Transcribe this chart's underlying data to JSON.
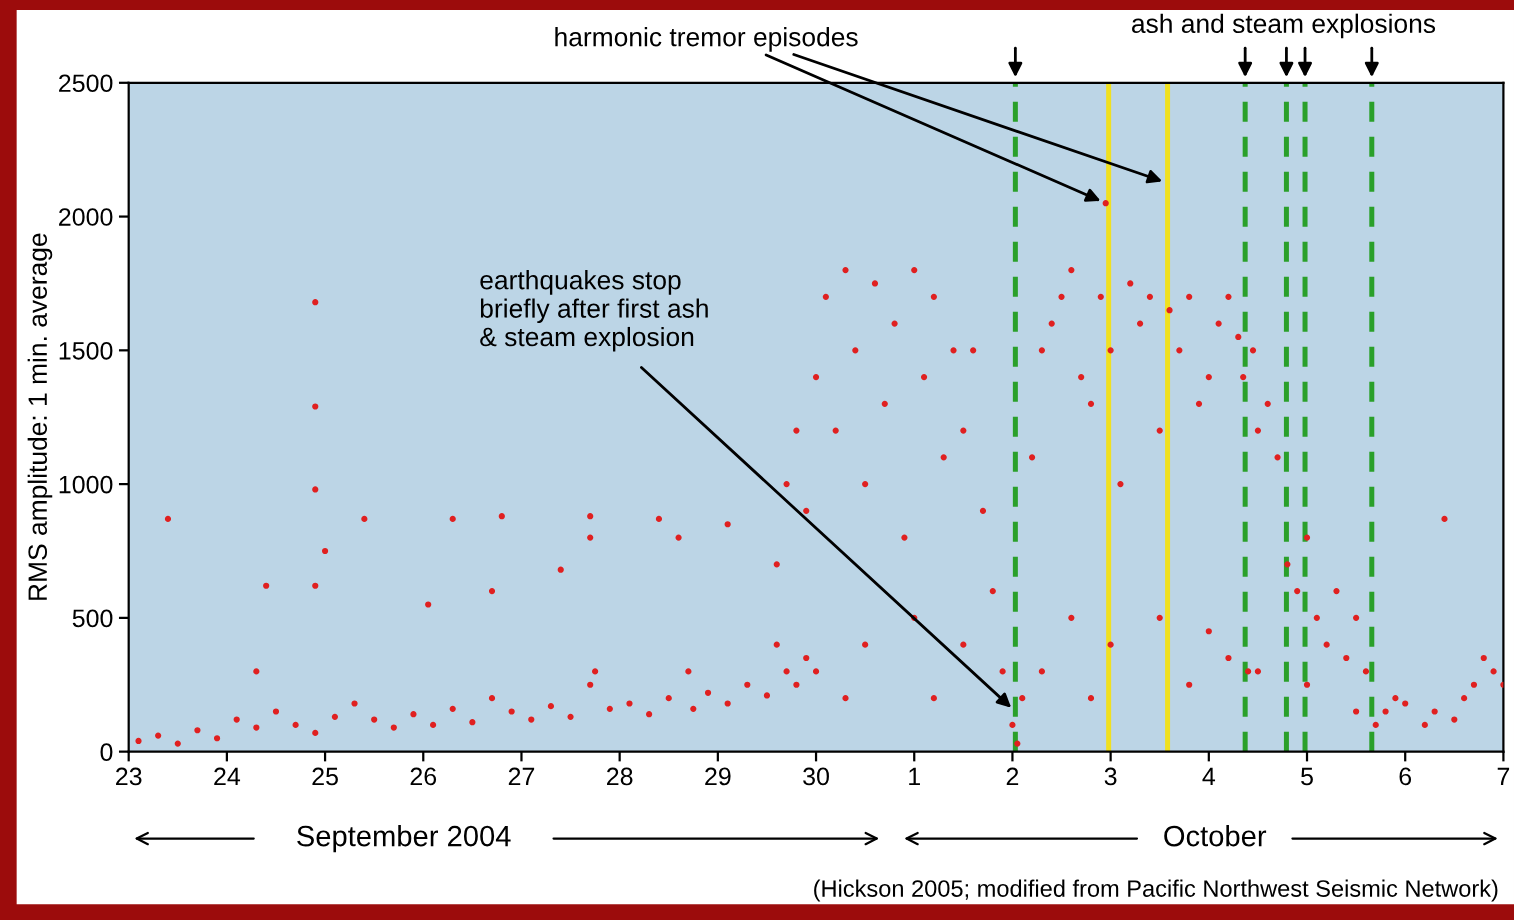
{
  "chart_data": {
    "type": "scatter",
    "ylabel": "RMS amplitude: 1 min. average",
    "xlim": [
      "2004-09-23",
      "2004-10-07"
    ],
    "ylim": [
      0,
      2500
    ],
    "xticks": [
      {
        "value": "2004-09-23",
        "label": "23"
      },
      {
        "value": "2004-09-24",
        "label": "24"
      },
      {
        "value": "2004-09-25",
        "label": "25"
      },
      {
        "value": "2004-09-26",
        "label": "26"
      },
      {
        "value": "2004-09-27",
        "label": "27"
      },
      {
        "value": "2004-09-28",
        "label": "28"
      },
      {
        "value": "2004-09-29",
        "label": "29"
      },
      {
        "value": "2004-09-30",
        "label": "30"
      },
      {
        "value": "2004-10-01",
        "label": "1"
      },
      {
        "value": "2004-10-02",
        "label": "2"
      },
      {
        "value": "2004-10-03",
        "label": "3"
      },
      {
        "value": "2004-10-04",
        "label": "4"
      },
      {
        "value": "2004-10-05",
        "label": "5"
      },
      {
        "value": "2004-10-06",
        "label": "6"
      },
      {
        "value": "2004-10-07",
        "label": "7"
      }
    ],
    "yticks": [
      0,
      500,
      1000,
      1500,
      2000,
      2500
    ],
    "grid": false,
    "marker": "circle",
    "series": [
      {
        "color": "#e02020",
        "x": [
          "2004-09-23T02:24",
          "2004-09-23T07:12",
          "2004-09-23T12:00",
          "2004-09-23T16:48",
          "2004-09-23T21:36",
          "2004-09-24T02:24",
          "2004-09-24T07:12",
          "2004-09-24T12:00",
          "2004-09-24T16:48",
          "2004-09-24T21:36",
          "2004-09-25T02:24",
          "2004-09-25T07:12",
          "2004-09-25T12:00",
          "2004-09-25T16:48",
          "2004-09-25T21:36",
          "2004-09-26T02:24",
          "2004-09-26T07:12",
          "2004-09-26T12:00",
          "2004-09-26T16:48",
          "2004-09-26T21:36",
          "2004-09-27T02:24",
          "2004-09-27T07:12",
          "2004-09-27T12:00",
          "2004-09-27T16:48",
          "2004-09-27T18:00",
          "2004-09-27T21:36",
          "2004-09-28T02:24",
          "2004-09-28T07:12",
          "2004-09-28T12:00",
          "2004-09-28T16:48",
          "2004-09-28T18:00",
          "2004-09-28T21:36",
          "2004-09-29T02:24",
          "2004-09-29T07:12",
          "2004-09-29T12:00",
          "2004-09-29T14:24",
          "2004-09-29T16:48",
          "2004-09-29T21:36",
          "2004-09-23T09:36",
          "2004-09-24T07:12",
          "2004-09-24T09:36",
          "2004-09-24T21:36",
          "2004-09-24T21:36",
          "2004-09-24T21:36",
          "2004-09-24T21:36",
          "2004-09-25T09:36",
          "2004-09-25T00:00",
          "2004-09-26T07:12",
          "2004-09-26T16:48",
          "2004-09-26T19:12",
          "2004-09-27T09:36",
          "2004-09-27T16:48",
          "2004-09-27T16:48",
          "2004-09-28T09:36",
          "2004-09-28T14:24",
          "2004-09-29T02:24",
          "2004-09-26T01:12",
          "2004-09-29T14:24",
          "2004-09-29T16:48",
          "2004-09-29T19:12",
          "2004-09-29T21:36",
          "2004-09-30T00:00",
          "2004-09-30T02:24",
          "2004-09-30T04:48",
          "2004-09-30T07:12",
          "2004-09-30T09:36",
          "2004-09-30T12:00",
          "2004-09-30T14:24",
          "2004-09-30T16:48",
          "2004-09-30T19:12",
          "2004-09-30T21:36",
          "2004-10-01T00:00",
          "2004-10-01T02:24",
          "2004-10-01T04:48",
          "2004-10-01T07:12",
          "2004-10-01T09:36",
          "2004-10-01T12:00",
          "2004-10-01T14:24",
          "2004-10-01T16:48",
          "2004-10-01T19:12",
          "2004-10-01T21:36",
          "2004-10-02T00:00",
          "2004-10-02T01:12",
          "2004-10-02T02:24",
          "2004-10-02T04:48",
          "2004-10-02T07:12",
          "2004-10-02T09:36",
          "2004-10-02T12:00",
          "2004-10-02T14:24",
          "2004-10-02T16:48",
          "2004-10-02T19:12",
          "2004-10-02T21:36",
          "2004-10-02T22:48",
          "2004-10-03T00:00",
          "2004-10-03T02:24",
          "2004-10-03T04:48",
          "2004-10-03T07:12",
          "2004-10-03T09:36",
          "2004-10-03T12:00",
          "2004-10-03T14:24",
          "2004-10-03T16:48",
          "2004-10-03T19:12",
          "2004-10-03T21:36",
          "2004-10-04T00:00",
          "2004-10-04T02:24",
          "2004-10-04T04:48",
          "2004-10-04T07:12",
          "2004-10-04T08:24",
          "2004-10-04T09:36",
          "2004-10-04T10:48",
          "2004-10-04T12:00",
          "2004-10-04T14:24",
          "2004-10-04T16:48",
          "2004-10-04T19:12",
          "2004-10-04T21:36",
          "2004-10-05T00:00",
          "2004-10-05T02:24",
          "2004-10-05T04:48",
          "2004-10-05T07:12",
          "2004-10-05T09:36",
          "2004-10-05T12:00",
          "2004-10-05T14:24",
          "2004-10-05T16:48",
          "2004-10-05T19:12",
          "2004-10-05T21:36",
          "2004-10-06T00:00",
          "2004-10-06T04:48",
          "2004-10-06T07:12",
          "2004-10-06T09:36",
          "2004-10-06T12:00",
          "2004-10-06T14:24",
          "2004-10-06T16:48",
          "2004-10-06T19:12",
          "2004-10-06T21:36",
          "2004-10-07T00:00",
          "2004-09-30T00:00",
          "2004-09-30T12:00",
          "2004-10-01T00:00",
          "2004-10-01T12:00",
          "2004-10-02T07:12",
          "2004-10-02T14:24",
          "2004-10-03T00:00",
          "2004-10-03T12:00",
          "2004-10-04T00:00",
          "2004-10-04T12:00",
          "2004-10-05T00:00",
          "2004-09-29T19:12",
          "2004-09-30T07:12",
          "2004-10-01T04:48",
          "2004-10-02T19:12",
          "2004-10-03T19:12",
          "2004-10-04T04:48",
          "2004-10-05T12:00"
        ],
        "values": [
          40,
          60,
          30,
          80,
          50,
          120,
          90,
          150,
          100,
          70,
          130,
          180,
          120,
          90,
          140,
          100,
          160,
          110,
          200,
          150,
          120,
          170,
          130,
          250,
          300,
          160,
          180,
          140,
          200,
          300,
          160,
          220,
          180,
          250,
          210,
          400,
          300,
          350,
          870,
          300,
          620,
          1680,
          1290,
          980,
          620,
          870,
          750,
          870,
          600,
          880,
          680,
          880,
          800,
          870,
          800,
          850,
          550,
          700,
          1000,
          1200,
          900,
          1400,
          1700,
          1200,
          1800,
          1500,
          1000,
          1750,
          1300,
          1600,
          800,
          1800,
          1400,
          1700,
          1100,
          1500,
          1200,
          1500,
          900,
          600,
          300,
          100,
          30,
          200,
          1100,
          1500,
          1600,
          1700,
          1800,
          1400,
          1300,
          1700,
          2050,
          1500,
          1000,
          1750,
          1600,
          1700,
          1200,
          1650,
          1500,
          1700,
          1300,
          1400,
          1600,
          1700,
          1550,
          1400,
          300,
          1500,
          1200,
          1300,
          1100,
          700,
          600,
          800,
          500,
          400,
          600,
          350,
          500,
          300,
          100,
          150,
          200,
          180,
          100,
          150,
          870,
          120,
          200,
          250,
          350,
          300,
          250,
          300,
          400,
          500,
          400,
          300,
          500,
          400,
          500,
          450,
          300,
          250,
          250,
          200,
          200,
          200,
          250,
          350,
          150
        ]
      }
    ],
    "ref_lines": [
      {
        "axis": "x",
        "value": "2004-10-02T00:43",
        "color": "#2aa02a",
        "line_style": "dashed"
      },
      {
        "axis": "x",
        "value": "2004-10-02T23:31",
        "color": "#f0e020",
        "line_style": "solid"
      },
      {
        "axis": "x",
        "value": "2004-10-03T13:55",
        "color": "#f0e020",
        "line_style": "solid"
      },
      {
        "axis": "x",
        "value": "2004-10-04T08:53",
        "color": "#2aa02a",
        "line_style": "dashed"
      },
      {
        "axis": "x",
        "value": "2004-10-04T18:58",
        "color": "#2aa02a",
        "line_style": "dashed"
      },
      {
        "axis": "x",
        "value": "2004-10-04T23:31",
        "color": "#2aa02a",
        "line_style": "dashed"
      },
      {
        "axis": "x",
        "value": "2004-10-05T15:50",
        "color": "#2aa02a",
        "line_style": "dashed"
      }
    ],
    "annotations": [
      {
        "text": "harmonic tremor episodes",
        "x": "2004-10-02T22:48",
        "y": 2050
      },
      {
        "text": "earthquakes stop\nbriefly after first ash\n& steam explosion",
        "x": "2004-10-02T00:43",
        "y": 150
      },
      "ash and steam explosions",
      "September 2004",
      "October",
      "(Hickson 2005; modified from Pacific Northwest Seismic Network)"
    ]
  }
}
